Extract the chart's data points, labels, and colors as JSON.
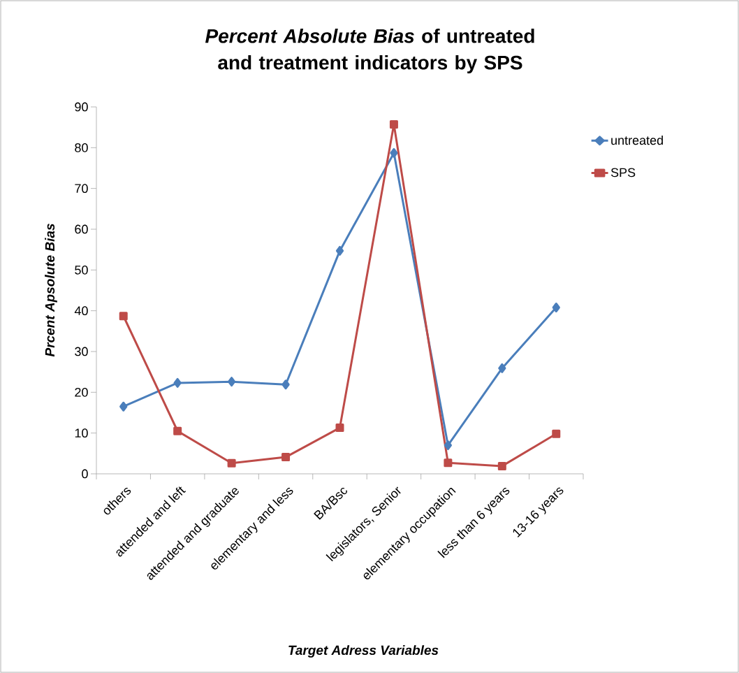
{
  "chart_data": {
    "type": "line",
    "title": "*Percent Absolute Bias* of untreated and treatment indicators by SPS",
    "xlabel": "Target Adress Variables",
    "ylabel": "Prcent Apsolute Bias",
    "categories": [
      "others",
      "attended and left",
      "attended and graduate",
      "elementary and less",
      "BA/Bsc",
      "legislators, Senior",
      "elementary occupation",
      "less than 6 years",
      "13-16 years"
    ],
    "series": [
      {
        "name": "untreated",
        "color": "#4a7ebb",
        "marker": "diamond",
        "values": [
          16.5,
          22.3,
          22.6,
          21.9,
          54.7,
          78.7,
          7.0,
          25.9,
          40.8
        ]
      },
      {
        "name": "SPS",
        "color": "#be4b48",
        "marker": "square",
        "values": [
          38.7,
          10.5,
          2.6,
          4.1,
          11.3,
          85.7,
          2.7,
          1.9,
          9.8
        ]
      }
    ],
    "ylim": [
      0,
      90
    ],
    "yticks": [
      0,
      10,
      20,
      30,
      40,
      50,
      60,
      70,
      80,
      90
    ],
    "grid": false,
    "legend": "right"
  }
}
